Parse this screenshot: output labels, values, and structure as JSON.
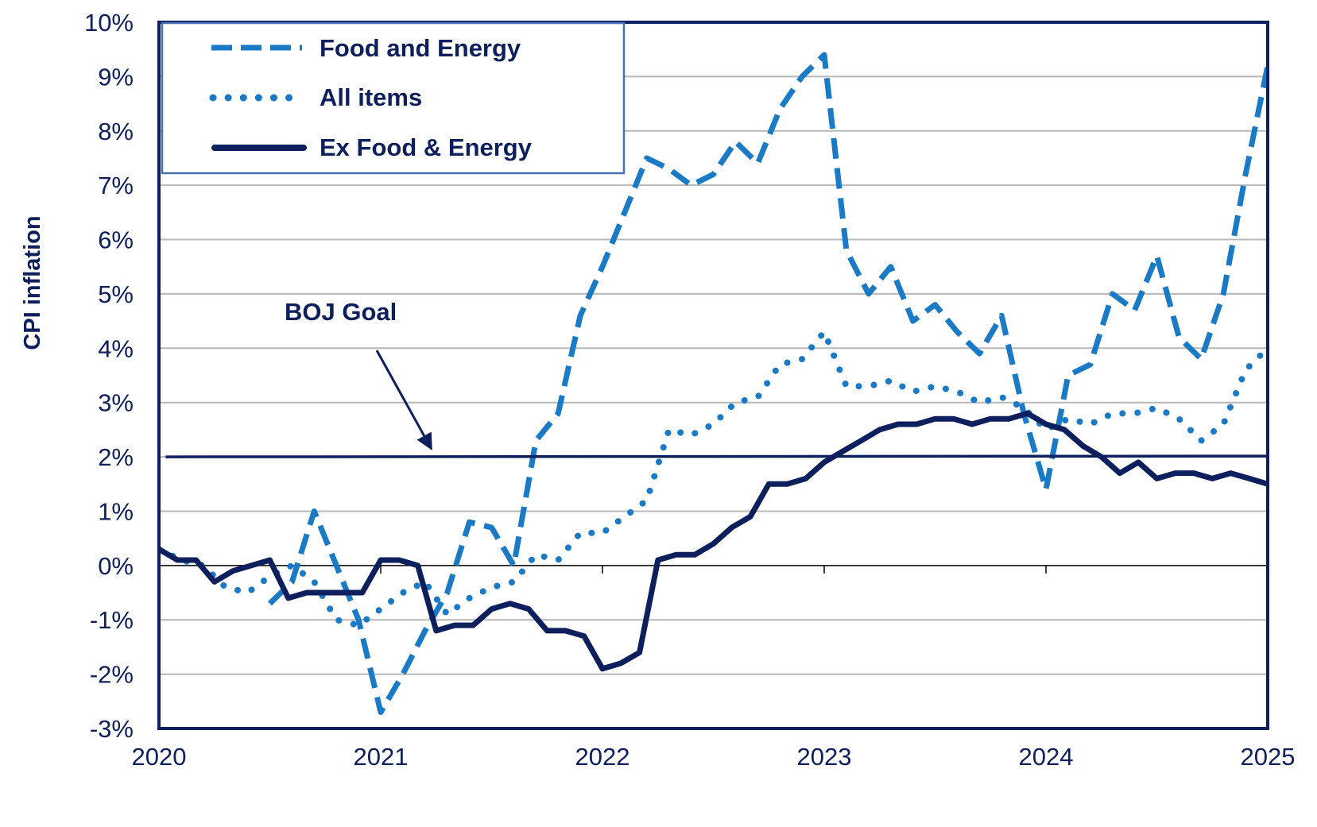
{
  "chart_data": {
    "type": "line",
    "title": "",
    "xlabel": "",
    "ylabel": "CPI inflation",
    "ylim": [
      -3,
      10
    ],
    "xlim": [
      2020,
      2025
    ],
    "yticks": [
      -3,
      -2,
      -1,
      0,
      1,
      2,
      3,
      4,
      5,
      6,
      7,
      8,
      9,
      10
    ],
    "ytick_labels": [
      "-3%",
      "-2%",
      "-1%",
      "0%",
      "1%",
      "2%",
      "3%",
      "4%",
      "5%",
      "6%",
      "7%",
      "8%",
      "9%",
      "10%"
    ],
    "xticks": [
      2020,
      2021,
      2022,
      2023,
      2024,
      2025
    ],
    "xtick_labels": [
      "2020",
      "2021",
      "2022",
      "2023",
      "2024",
      "2025"
    ],
    "grid": true,
    "legend": {
      "position": "top-left"
    },
    "series": [
      {
        "name": "Food and Energy",
        "style": "dashed",
        "color": "#1a7ac6",
        "x": [
          2020.5,
          2020.6,
          2020.7,
          2020.8,
          2020.9,
          2021.0,
          2021.1,
          2021.2,
          2021.3,
          2021.4,
          2021.5,
          2021.6,
          2021.7,
          2021.8,
          2021.9,
          2022.0,
          2022.1,
          2022.2,
          2022.3,
          2022.4,
          2022.5,
          2022.6,
          2022.7,
          2022.8,
          2022.9,
          2023.0,
          2023.1,
          2023.2,
          2023.3,
          2023.4,
          2023.5,
          2023.6,
          2023.7,
          2023.8,
          2023.9,
          2024.0,
          2024.1,
          2024.2,
          2024.3,
          2024.4,
          2024.5,
          2024.6,
          2024.7,
          2024.8,
          2024.9,
          2025.0
        ],
        "y": [
          -0.7,
          -0.3,
          1.0,
          0.0,
          -1.0,
          -2.7,
          -2.0,
          -1.2,
          -0.5,
          0.8,
          0.7,
          0.0,
          2.3,
          2.8,
          4.6,
          5.5,
          6.5,
          7.5,
          7.3,
          7.0,
          7.2,
          7.8,
          7.4,
          8.4,
          9.0,
          9.4,
          5.8,
          5.0,
          5.5,
          4.5,
          4.8,
          4.3,
          3.9,
          4.6,
          2.8,
          1.4,
          3.5,
          3.7,
          5.0,
          4.7,
          5.7,
          4.2,
          3.8,
          5.0,
          7.2,
          9.2
        ]
      },
      {
        "name": "All items",
        "style": "dotted",
        "color": "#1a7ac6",
        "x": [
          2020.0,
          2020.1,
          2020.2,
          2020.3,
          2020.4,
          2020.5,
          2020.6,
          2020.7,
          2020.8,
          2020.9,
          2021.0,
          2021.1,
          2021.2,
          2021.3,
          2021.4,
          2021.5,
          2021.6,
          2021.7,
          2021.8,
          2021.9,
          2022.0,
          2022.1,
          2022.2,
          2022.3,
          2022.4,
          2022.5,
          2022.6,
          2022.7,
          2022.8,
          2022.9,
          2023.0,
          2023.1,
          2023.2,
          2023.3,
          2023.4,
          2023.5,
          2023.6,
          2023.7,
          2023.8,
          2023.9,
          2024.0,
          2024.1,
          2024.2,
          2024.3,
          2024.4,
          2024.5,
          2024.6,
          2024.7,
          2024.8,
          2024.9,
          2025.0
        ],
        "y": [
          0.3,
          0.1,
          0.0,
          -0.4,
          -0.5,
          -0.2,
          0.0,
          -0.3,
          -1.0,
          -1.1,
          -0.8,
          -0.5,
          -0.3,
          -0.9,
          -0.6,
          -0.4,
          -0.3,
          0.2,
          0.1,
          0.6,
          0.6,
          0.9,
          1.2,
          2.5,
          2.4,
          2.6,
          3.0,
          3.1,
          3.7,
          3.8,
          4.3,
          3.3,
          3.3,
          3.4,
          3.2,
          3.3,
          3.2,
          3.0,
          3.1,
          2.9,
          2.5,
          2.7,
          2.6,
          2.8,
          2.8,
          2.9,
          2.7,
          2.3,
          2.6,
          3.6,
          4.0
        ]
      },
      {
        "name": "Ex Food & Energy",
        "style": "solid",
        "color": "#0d1f5c",
        "x": [
          2020.0,
          2020.083,
          2020.167,
          2020.25,
          2020.333,
          2020.417,
          2020.5,
          2020.583,
          2020.667,
          2020.75,
          2020.833,
          2020.917,
          2021.0,
          2021.083,
          2021.167,
          2021.25,
          2021.333,
          2021.417,
          2021.5,
          2021.583,
          2021.667,
          2021.75,
          2021.833,
          2021.917,
          2022.0,
          2022.083,
          2022.167,
          2022.25,
          2022.333,
          2022.417,
          2022.5,
          2022.583,
          2022.667,
          2022.75,
          2022.833,
          2022.917,
          2023.0,
          2023.083,
          2023.167,
          2023.25,
          2023.333,
          2023.417,
          2023.5,
          2023.583,
          2023.667,
          2023.75,
          2023.833,
          2023.917,
          2024.0,
          2024.083,
          2024.167,
          2024.25,
          2024.333,
          2024.417,
          2024.5,
          2024.583,
          2024.667,
          2024.75,
          2024.833,
          2024.917,
          2025.0
        ],
        "y": [
          0.3,
          0.1,
          0.1,
          -0.3,
          -0.1,
          0.0,
          0.1,
          -0.6,
          -0.5,
          -0.5,
          -0.5,
          -0.5,
          0.1,
          0.1,
          0.0,
          -1.2,
          -1.1,
          -1.1,
          -0.8,
          -0.7,
          -0.8,
          -1.2,
          -1.2,
          -1.3,
          -1.9,
          -1.8,
          -1.6,
          0.1,
          0.2,
          0.2,
          0.4,
          0.7,
          0.9,
          1.5,
          1.5,
          1.6,
          1.9,
          2.1,
          2.3,
          2.5,
          2.6,
          2.6,
          2.7,
          2.7,
          2.6,
          2.7,
          2.7,
          2.8,
          2.6,
          2.5,
          2.2,
          2.0,
          1.7,
          1.9,
          1.6,
          1.7,
          1.7,
          1.6,
          1.7,
          1.6,
          1.5
        ]
      }
    ],
    "reference_line": {
      "name": "BOJ Goal",
      "y": 2.0,
      "x_start": 2020.03,
      "x_end": 2025.0,
      "color": "#0d1f5c"
    },
    "annotations": [
      {
        "text": "BOJ Goal",
        "points_to_x": 2021.2,
        "points_to_y": 2.0
      }
    ]
  }
}
